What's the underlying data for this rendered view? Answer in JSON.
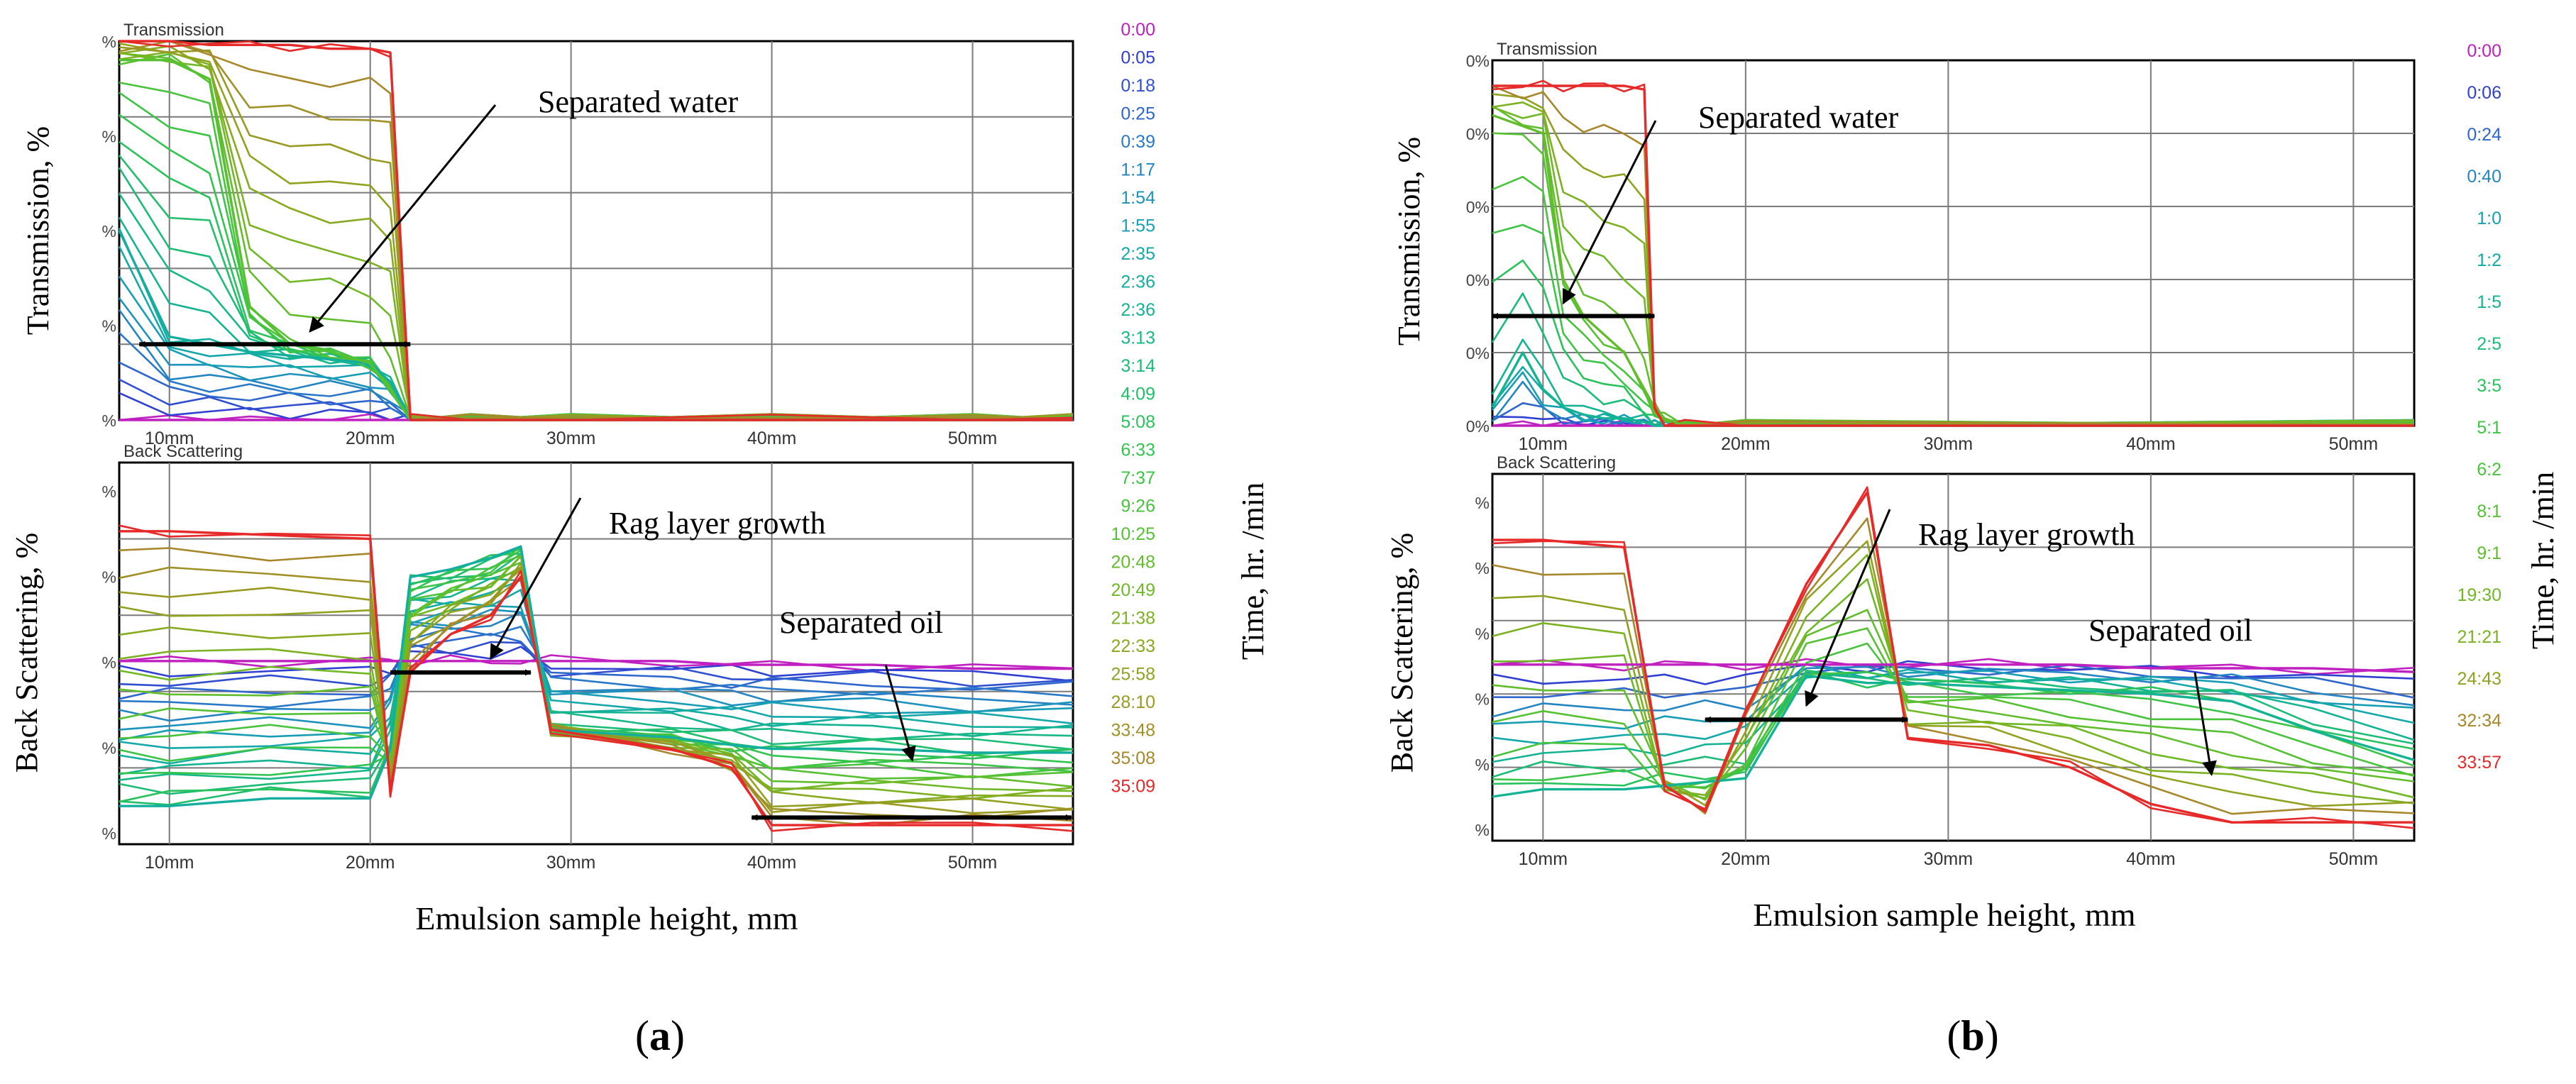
{
  "figure": {
    "panels": [
      {
        "letter": "(a)",
        "letter_text": "a",
        "xlabel": "Emulsion sample height, mm",
        "time_axis_label": "Time, hr. /min",
        "x_ticks": [
          "10mm",
          "20mm",
          "30mm",
          "40mm",
          "50mm"
        ],
        "time_legend": [
          {
            "label": "0:00",
            "color": "#c020c0"
          },
          {
            "label": "0:05",
            "color": "#3040d0"
          },
          {
            "label": "0:18",
            "color": "#2f4fd0"
          },
          {
            "label": "0:25",
            "color": "#2e66cc"
          },
          {
            "label": "0:39",
            "color": "#2a78c8"
          },
          {
            "label": "1:17",
            "color": "#2485c2"
          },
          {
            "label": "1:54",
            "color": "#1d92bc"
          },
          {
            "label": "1:55",
            "color": "#189eb4"
          },
          {
            "label": "2:35",
            "color": "#15a8aa"
          },
          {
            "label": "2:36",
            "color": "#13ae9f"
          },
          {
            "label": "2:36",
            "color": "#14b393"
          },
          {
            "label": "3:13",
            "color": "#17b886"
          },
          {
            "label": "3:14",
            "color": "#1cbc78"
          },
          {
            "label": "4:09",
            "color": "#22bf6a"
          },
          {
            "label": "5:08",
            "color": "#2ac25c"
          },
          {
            "label": "6:33",
            "color": "#33c450"
          },
          {
            "label": "7:37",
            "color": "#3dc446"
          },
          {
            "label": "9:26",
            "color": "#48c33c"
          },
          {
            "label": "10:25",
            "color": "#55c133"
          },
          {
            "label": "20:48",
            "color": "#62bd2c"
          },
          {
            "label": "20:49",
            "color": "#70b826"
          },
          {
            "label": "21:38",
            "color": "#7cb222"
          },
          {
            "label": "22:33",
            "color": "#88aa20"
          },
          {
            "label": "25:58",
            "color": "#92a220"
          },
          {
            "label": "28:10",
            "color": "#999a22"
          },
          {
            "label": "33:48",
            "color": "#a09126"
          },
          {
            "label": "35:08",
            "color": "#a6882a"
          },
          {
            "label": "35:09",
            "color": "#e62a2a"
          }
        ],
        "transmission": {
          "title": "Transmission",
          "ylabel": "Transmission, %",
          "annotation": "Separated water",
          "y_tick_glyphs": [
            "%",
            "%",
            "%",
            "%",
            "%"
          ]
        },
        "backscattering": {
          "title": "Back Scattering",
          "ylabel": "Back Scattering, %",
          "annotations": [
            "Rag layer growth",
            "Separated oil"
          ],
          "y_tick_glyphs": [
            "%",
            "%",
            "%",
            "%",
            "%"
          ]
        }
      },
      {
        "letter": "(b)",
        "letter_text": "b",
        "xlabel": "Emulsion sample height, mm",
        "time_axis_label": "Time, hr. /min",
        "x_ticks": [
          "10mm",
          "20mm",
          "30mm",
          "40mm",
          "50mm"
        ],
        "time_legend": [
          {
            "label": "0:00",
            "color": "#c020c0"
          },
          {
            "label": "0:06",
            "color": "#3040d0"
          },
          {
            "label": "0:24",
            "color": "#2e66cc"
          },
          {
            "label": "0:40",
            "color": "#2485c2"
          },
          {
            "label": "1:0",
            "color": "#189eb4"
          },
          {
            "label": "1:2",
            "color": "#14a9a8"
          },
          {
            "label": "1:5",
            "color": "#14b393"
          },
          {
            "label": "2:5",
            "color": "#1cbc78"
          },
          {
            "label": "3:5",
            "color": "#2ac25c"
          },
          {
            "label": "5:1",
            "color": "#3dc446"
          },
          {
            "label": "6:2",
            "color": "#48c33c"
          },
          {
            "label": "8:1",
            "color": "#55c133"
          },
          {
            "label": "9:1",
            "color": "#62bd2c"
          },
          {
            "label": "19:30",
            "color": "#70b826"
          },
          {
            "label": "21:21",
            "color": "#7cb222"
          },
          {
            "label": "24:43",
            "color": "#92a220"
          },
          {
            "label": "32:34",
            "color": "#a6882a"
          },
          {
            "label": "33:57",
            "color": "#e62a2a"
          }
        ],
        "transmission": {
          "title": "Transmission",
          "ylabel": "Transmission, %",
          "annotation": "Separated water",
          "y_tick_labels": [
            "0%",
            "0%",
            "0%",
            "0%",
            "0%",
            "0%"
          ]
        },
        "backscattering": {
          "title": "Back Scattering",
          "ylabel": "Back Scattering, %",
          "annotations": [
            "Rag layer growth",
            "Separated oil"
          ],
          "y_tick_glyphs": [
            "%",
            "%",
            "%",
            "%",
            "%",
            "%"
          ]
        }
      }
    ]
  },
  "chart_data": [
    {
      "panel": "a",
      "subplot": "Transmission",
      "type": "line",
      "title": "Transmission",
      "xlabel": "Emulsion sample height, mm",
      "ylabel": "Transmission, %",
      "xlim": [
        7.5,
        55
      ],
      "ylim": [
        0,
        100
      ],
      "x": [
        7.5,
        10,
        12,
        14,
        16,
        18,
        20,
        21,
        22,
        25,
        30,
        40,
        50,
        55
      ],
      "series": [
        {
          "name": "0:00",
          "values": [
            0,
            0,
            0,
            0,
            0,
            0,
            0,
            0,
            0,
            0,
            0,
            0,
            0,
            0
          ]
        },
        {
          "name": "2:36",
          "values": [
            50,
            22,
            20,
            18,
            17,
            16,
            15,
            10,
            0,
            0,
            0,
            0,
            0,
            0
          ]
        },
        {
          "name": "10:25",
          "values": [
            95,
            95,
            90,
            30,
            20,
            18,
            15,
            8,
            0,
            0,
            0,
            0,
            0,
            0
          ]
        },
        {
          "name": "35:09",
          "values": [
            100,
            100,
            99,
            99,
            99,
            98,
            98,
            97,
            0,
            0,
            0,
            0,
            0,
            0
          ]
        }
      ],
      "annotations": [
        {
          "text": "Separated water",
          "span_mm": [
            8.5,
            22
          ]
        }
      ]
    },
    {
      "panel": "a",
      "subplot": "Back Scattering",
      "type": "line",
      "title": "Back Scattering",
      "xlabel": "Emulsion sample height, mm",
      "ylabel": "Back Scattering, %",
      "xlim": [
        7.5,
        55
      ],
      "ylim": [
        0,
        100
      ],
      "x": [
        7.5,
        10,
        15,
        20,
        21,
        22,
        24,
        26,
        27.5,
        29,
        35,
        38,
        40,
        45,
        50,
        55
      ],
      "series": [
        {
          "name": "0:00",
          "values": [
            48,
            48,
            48,
            48,
            48,
            48,
            48,
            48,
            48,
            48,
            48,
            47,
            47,
            47,
            46,
            46
          ]
        },
        {
          "name": "2:36",
          "values": [
            10,
            10,
            12,
            12,
            25,
            70,
            72,
            75,
            78,
            30,
            28,
            26,
            25,
            25,
            24,
            24
          ]
        },
        {
          "name": "35:09",
          "values": [
            82,
            82,
            81,
            80,
            14,
            45,
            55,
            60,
            70,
            30,
            25,
            20,
            5,
            5,
            5,
            5
          ]
        }
      ],
      "annotations": [
        {
          "text": "Rag layer growth",
          "span_mm": [
            21,
            28
          ]
        },
        {
          "text": "Separated oil",
          "span_mm": [
            39,
            55
          ]
        }
      ]
    },
    {
      "panel": "b",
      "subplot": "Transmission",
      "type": "line",
      "title": "Transmission",
      "xlabel": "Emulsion sample height, mm",
      "ylabel": "Transmission, %",
      "xlim": [
        7.5,
        53
      ],
      "ylim": [
        0,
        100
      ],
      "x": [
        7.5,
        9,
        10,
        11,
        12,
        13,
        14,
        15,
        15.5,
        16,
        17,
        20,
        53
      ],
      "series": [
        {
          "name": "0:00",
          "values": [
            0,
            0,
            0,
            0,
            0,
            0,
            0,
            0,
            0,
            0,
            0,
            0,
            0
          ]
        },
        {
          "name": "1:5",
          "values": [
            5,
            20,
            10,
            5,
            3,
            2,
            2,
            1,
            0,
            0,
            0,
            0,
            0
          ]
        },
        {
          "name": "9:1",
          "values": [
            85,
            82,
            80,
            40,
            30,
            25,
            20,
            10,
            5,
            2,
            0,
            0,
            0
          ]
        },
        {
          "name": "33:57",
          "values": [
            93,
            93,
            93,
            93,
            93,
            93,
            93,
            92,
            5,
            0,
            0,
            0,
            0
          ]
        }
      ],
      "annotations": [
        {
          "text": "Separated water",
          "span_mm": [
            7.5,
            15.5
          ]
        }
      ]
    },
    {
      "panel": "b",
      "subplot": "Back Scattering",
      "type": "line",
      "title": "Back Scattering",
      "xlabel": "Emulsion sample height, mm",
      "ylabel": "Back Scattering, %",
      "xlim": [
        7.5,
        53
      ],
      "ylim": [
        0,
        100
      ],
      "x": [
        7.5,
        10,
        14,
        16,
        18,
        20,
        23,
        26,
        28,
        32,
        36,
        40,
        44,
        48,
        53
      ],
      "series": [
        {
          "name": "0:00",
          "values": [
            48,
            48,
            48,
            48,
            48,
            48,
            48,
            48,
            48,
            48,
            48,
            47,
            47,
            47,
            46
          ]
        },
        {
          "name": "1:5",
          "values": [
            12,
            14,
            14,
            15,
            16,
            17,
            45,
            43,
            43,
            42,
            41,
            40,
            38,
            30,
            22
          ]
        },
        {
          "name": "33:57",
          "values": [
            82,
            82,
            80,
            15,
            8,
            35,
            70,
            95,
            28,
            26,
            20,
            10,
            5,
            5,
            5
          ]
        }
      ],
      "annotations": [
        {
          "text": "Rag layer growth",
          "span_mm": [
            18,
            28
          ]
        },
        {
          "text": "Separated oil",
          "span_mm": [
            40,
            53
          ]
        }
      ]
    }
  ]
}
